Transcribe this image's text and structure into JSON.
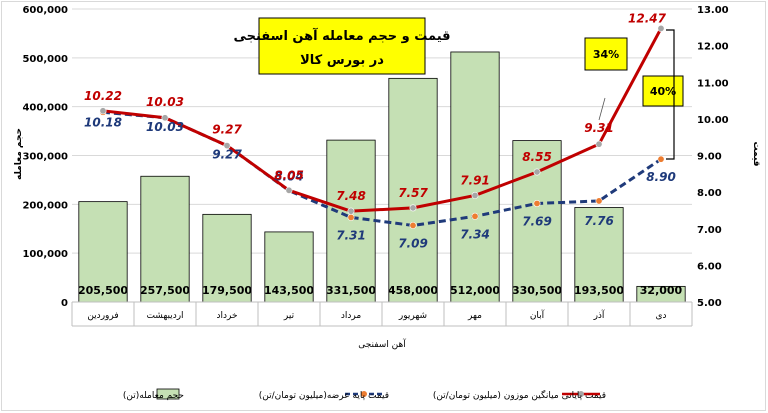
{
  "chart_data": {
    "type": "bar",
    "title_line1": "قیمت و حجم معامله آهن اسفنجی",
    "title_line2": "در بورس کالا",
    "categories": [
      "فروردین",
      "اردیبهشت",
      "خرداد",
      "تیر",
      "مرداد",
      "شهریور",
      "مهر",
      "آبان",
      "آذر",
      "دی"
    ],
    "xlabel": "آهن اسفنجی",
    "ylabel_left": "حجم معامله",
    "ylabel_right": "قیمت",
    "ylim_left": [
      0,
      600000
    ],
    "yticks_left": [
      "0",
      "100,000",
      "200,000",
      "300,000",
      "400,000",
      "500,000",
      "600,000"
    ],
    "ylim_right": [
      5,
      13
    ],
    "yticks_right": [
      "5.00",
      "6.00",
      "7.00",
      "8.00",
      "9.00",
      "10.00",
      "11.00",
      "12.00",
      "13.00"
    ],
    "grid": true,
    "legend_position": "bottom",
    "series": [
      {
        "name": "حجم معامله(تن)",
        "kind": "bar",
        "axis": "left",
        "color": "#c5e0b4",
        "values": [
          205500,
          257500,
          179500,
          143500,
          331500,
          458000,
          512000,
          330500,
          193500,
          32000
        ],
        "labels": [
          "205,500",
          "257,500",
          "179,500",
          "143,500",
          "331,500",
          "458,000",
          "512,000",
          "330,500",
          "193,500",
          "32,000"
        ]
      },
      {
        "name": "قیمت پایه عرضه(میلیون تومان/تن)",
        "kind": "line-dashed",
        "axis": "right",
        "color": "#1f3a7a",
        "marker_color": "#ed7d31",
        "values": [
          10.18,
          10.03,
          9.27,
          8.04,
          7.31,
          7.09,
          7.34,
          7.69,
          7.76,
          8.9
        ],
        "labels": [
          "10.18",
          "10.03",
          "9.27",
          "8.04",
          "7.31",
          "7.09",
          "7.34",
          "7.69",
          "7.76",
          "8.90"
        ]
      },
      {
        "name": "قیمت پایانی میانگین موزون (میلیون تومان/تن)",
        "kind": "line",
        "axis": "right",
        "color": "#c00000",
        "marker_color": "#a6a6a6",
        "values": [
          10.22,
          10.03,
          9.27,
          8.05,
          7.48,
          7.57,
          7.91,
          8.55,
          9.31,
          12.47
        ],
        "labels": [
          "10.22",
          "10.03",
          "9.27",
          "8.05",
          "7.48",
          "7.57",
          "7.91",
          "8.55",
          "9.31",
          "12.47"
        ]
      }
    ],
    "annotations": [
      {
        "text": "34%",
        "color": "#ffff00"
      },
      {
        "text": "40%",
        "color": "#ffff00"
      }
    ]
  }
}
